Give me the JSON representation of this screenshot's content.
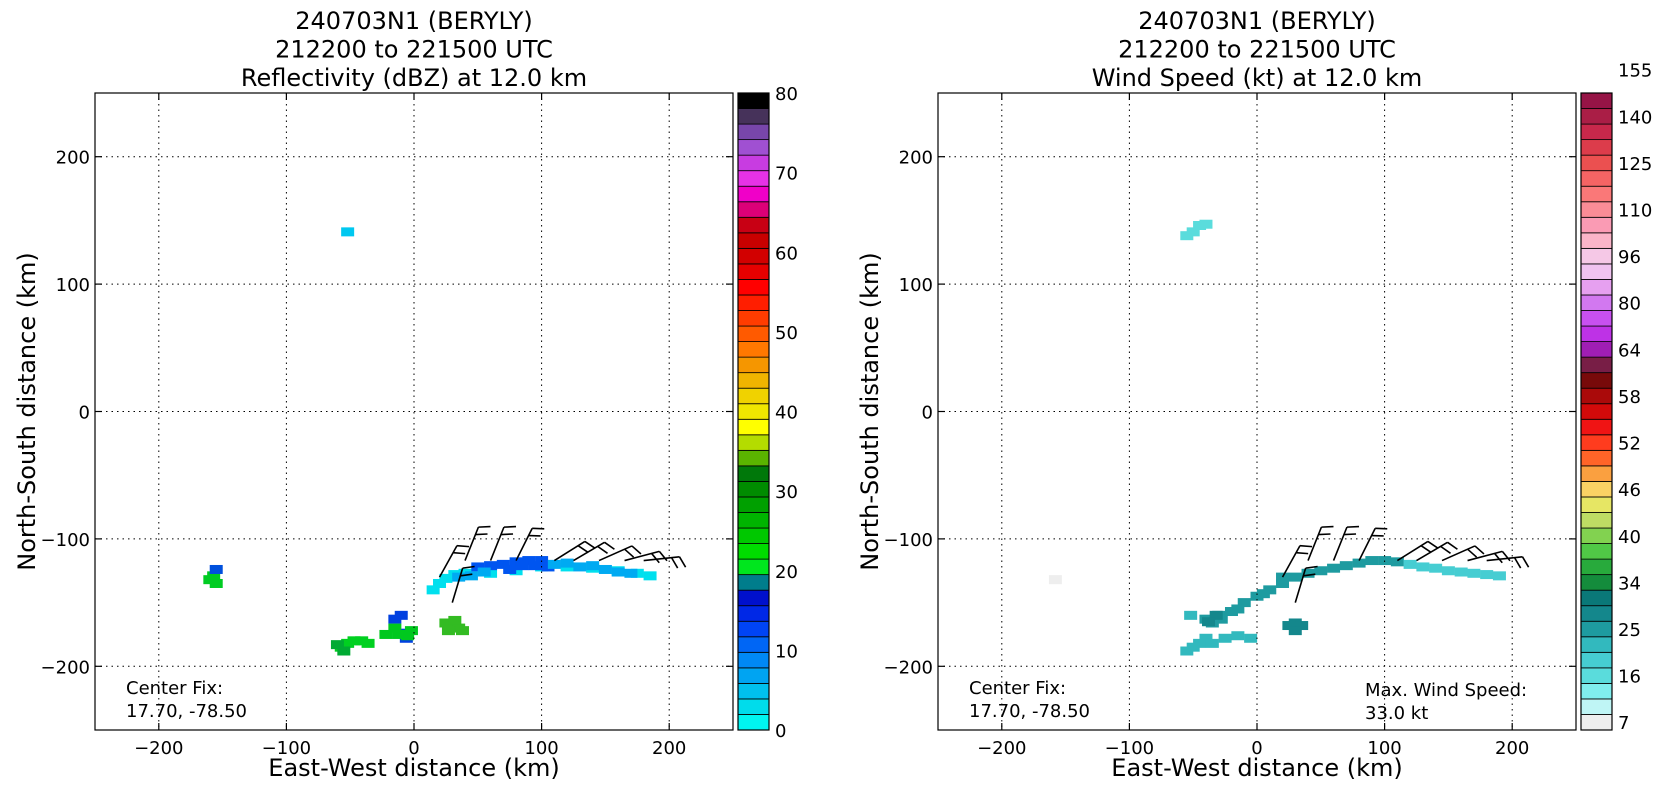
{
  "chart_data": [
    {
      "type": "heatmap",
      "title_lines": [
        "240703N1 (BERYLY)",
        "212200 to 221500 UTC",
        "Reflectivity (dBZ) at 12.0 km"
      ],
      "xlabel": "East-West distance (km)",
      "ylabel": "North-South distance (km)",
      "xlim": [
        -250,
        250
      ],
      "ylim": [
        -250,
        250
      ],
      "xticks": [
        -200,
        -100,
        0,
        100,
        200
      ],
      "yticks": [
        -200,
        -100,
        0,
        100,
        200
      ],
      "grid": true,
      "colorbar": {
        "ticks": [
          "0",
          "10",
          "20",
          "30",
          "40",
          "50",
          "60",
          "70",
          "80"
        ],
        "colors": [
          "#00f5f0",
          "#00dceb",
          "#00c0ee",
          "#00a4f2",
          "#0088f5",
          "#0066f5",
          "#0044f5",
          "#0028e6",
          "#0010cc",
          "#007d8c",
          "#00e61e",
          "#00dc00",
          "#00c800",
          "#00b400",
          "#00a000",
          "#008c00",
          "#00780a",
          "#5ab400",
          "#b4dc00",
          "#ffff00",
          "#f0e600",
          "#f0d200",
          "#f0b400",
          "#f59600",
          "#ff7800",
          "#ff5a00",
          "#ff3c00",
          "#ff1e00",
          "#ff0000",
          "#e60000",
          "#d20000",
          "#c80000",
          "#c80014",
          "#dc0078",
          "#f000c8",
          "#e632e6",
          "#c83ce1",
          "#a050d2",
          "#7846aa",
          "#46325a",
          "#000000"
        ]
      },
      "annotations": [
        "Center Fix:",
        "17.70, -78.50"
      ],
      "features": [
        {
          "color": "#00c8f0",
          "points": [
            [
              -52,
              141
            ]
          ]
        },
        {
          "color": "#00cc22",
          "points": [
            [
              -160,
              -132
            ],
            [
              -155,
              -135
            ],
            [
              -157,
              -129
            ]
          ]
        },
        {
          "color": "#0050dd",
          "points": [
            [
              -155,
              -124
            ]
          ]
        },
        {
          "color": "#00d020",
          "points": [
            [
              -57,
              -185
            ],
            [
              -52,
              -182
            ],
            [
              -47,
              -180
            ],
            [
              -41,
              -180
            ],
            [
              -36,
              -182
            ]
          ]
        },
        {
          "color": "#00aa33",
          "points": [
            [
              -55,
              -188
            ],
            [
              -60,
              -183
            ]
          ]
        },
        {
          "color": "#0040e0",
          "points": [
            [
              -15,
              -163
            ],
            [
              -10,
              -160
            ],
            [
              -7,
              -174
            ],
            [
              -6,
              -178
            ]
          ]
        },
        {
          "color": "#00c81e",
          "points": [
            [
              -15,
              -170
            ],
            [
              -12,
              -175
            ],
            [
              -5,
              -176
            ],
            [
              -2,
              -172
            ],
            [
              -22,
              -175
            ]
          ]
        },
        {
          "color": "#33bb22",
          "points": [
            [
              25,
              -166
            ],
            [
              30,
              -168
            ],
            [
              35,
              -170
            ],
            [
              27,
              -172
            ],
            [
              38,
              -172
            ],
            [
              32,
              -164
            ]
          ]
        },
        {
          "color": "#00e0ee",
          "points": [
            [
              15,
              -140
            ],
            [
              20,
              -135
            ],
            [
              25,
              -131
            ],
            [
              32,
              -128
            ],
            [
              40,
              -127
            ],
            [
              60,
              -127
            ],
            [
              80,
              -125
            ],
            [
              100,
              -122
            ],
            [
              120,
              -122
            ],
            [
              140,
              -123
            ],
            [
              160,
              -125
            ],
            [
              175,
              -127
            ],
            [
              185,
              -129
            ]
          ]
        },
        {
          "color": "#0055f0",
          "points": [
            [
              50,
              -122
            ],
            [
              60,
              -121
            ],
            [
              70,
              -120
            ],
            [
              80,
              -118
            ],
            [
              90,
              -117
            ],
            [
              100,
              -117
            ],
            [
              105,
              -122
            ],
            [
              95,
              -121
            ],
            [
              85,
              -121
            ],
            [
              75,
              -124
            ]
          ]
        },
        {
          "color": "#00aaf2",
          "points": [
            [
              110,
              -120
            ],
            [
              120,
              -119
            ],
            [
              130,
              -122
            ],
            [
              140,
              -121
            ],
            [
              150,
              -124
            ],
            [
              160,
              -126
            ],
            [
              170,
              -127
            ],
            [
              35,
              -130
            ],
            [
              45,
              -129
            ],
            [
              55,
              -126
            ]
          ]
        }
      ],
      "barbs": [
        {
          "x": 20,
          "y": -130,
          "u": 1,
          "v": 1.8
        },
        {
          "x": 40,
          "y": -117,
          "u": 0.8,
          "v": 2
        },
        {
          "x": 60,
          "y": -117,
          "u": 0.8,
          "v": 2
        },
        {
          "x": 80,
          "y": -117,
          "u": 1,
          "v": 2
        },
        {
          "x": 110,
          "y": -117,
          "u": 1.6,
          "v": 1
        },
        {
          "x": 125,
          "y": -117,
          "u": 1.7,
          "v": 1
        },
        {
          "x": 145,
          "y": -117,
          "u": 1.8,
          "v": 0.8
        },
        {
          "x": 165,
          "y": -117,
          "u": 1.9,
          "v": 0.5
        },
        {
          "x": 180,
          "y": -117,
          "u": 1.9,
          "v": 0.2
        },
        {
          "x": 30,
          "y": -150,
          "u": 0.6,
          "v": 2
        }
      ]
    },
    {
      "type": "heatmap",
      "title_lines": [
        "240703N1 (BERYLY)",
        "212200 to 221500 UTC",
        "Wind Speed (kt) at 12.0 km"
      ],
      "xlabel": "East-West distance (km)",
      "ylabel": "North-South distance (km)",
      "xlim": [
        -250,
        250
      ],
      "ylim": [
        -250,
        250
      ],
      "xticks": [
        -200,
        -100,
        0,
        100,
        200
      ],
      "yticks": [
        -200,
        -100,
        0,
        100,
        200
      ],
      "grid": true,
      "colorbar": {
        "ticks": [
          "7",
          "16",
          "25",
          "34",
          "40",
          "46",
          "52",
          "58",
          "64",
          "80",
          "96",
          "110",
          "125",
          "140",
          "155"
        ],
        "colors": [
          "#eeeeee",
          "#bff5f5",
          "#80eeee",
          "#5adcdc",
          "#46cdd2",
          "#32b9be",
          "#1e9ba0",
          "#14878c",
          "#0a7878",
          "#148c3c",
          "#28aa3c",
          "#50c846",
          "#82d250",
          "#bedc64",
          "#e6e664",
          "#fad264",
          "#faa040",
          "#ff6428",
          "#ff3c1e",
          "#f01414",
          "#d20a0a",
          "#aa0a0a",
          "#780a0a",
          "#781e46",
          "#a01eb4",
          "#be32e6",
          "#c850f0",
          "#d278f0",
          "#e6a0f0",
          "#f0c3f0",
          "#f5c8e6",
          "#fab4c8",
          "#fa9bb4",
          "#fa8c96",
          "#fa7878",
          "#f56464",
          "#eb5050",
          "#dc3c4b",
          "#c8284b",
          "#aa1e46",
          "#961446"
        ]
      },
      "annotations": [
        "Center Fix:",
        "17.70, -78.50",
        "Max. Wind Speed:",
        "33.0 kt"
      ],
      "features": [
        {
          "color": "#5adcdc",
          "points": [
            [
              -50,
              141
            ],
            [
              -45,
              146
            ],
            [
              -40,
              147
            ],
            [
              -55,
              138
            ]
          ]
        },
        {
          "color": "#eeeeee",
          "points": [
            [
              -158,
              -132
            ]
          ]
        },
        {
          "color": "#1e9ba0",
          "points": [
            [
              -40,
              -163
            ],
            [
              -30,
              -160
            ],
            [
              -20,
              -157
            ],
            [
              -10,
              -150
            ],
            [
              0,
              -145
            ],
            [
              10,
              -140
            ],
            [
              20,
              -135
            ],
            [
              30,
              -130
            ],
            [
              40,
              -127
            ],
            [
              50,
              -125
            ],
            [
              60,
              -123
            ],
            [
              70,
              -121
            ],
            [
              80,
              -119
            ],
            [
              90,
              -117
            ],
            [
              100,
              -117
            ],
            [
              110,
              -118
            ],
            [
              20,
              -130
            ],
            [
              5,
              -143
            ],
            [
              -15,
              -155
            ],
            [
              -28,
              -163
            ],
            [
              -35,
              -166
            ]
          ]
        },
        {
          "color": "#46cdd2",
          "points": [
            [
              120,
              -120
            ],
            [
              130,
              -122
            ],
            [
              140,
              -123
            ],
            [
              150,
              -125
            ],
            [
              160,
              -126
            ],
            [
              170,
              -127
            ],
            [
              180,
              -128
            ],
            [
              190,
              -129
            ]
          ]
        },
        {
          "color": "#32b9be",
          "points": [
            [
              -50,
              -185
            ],
            [
              -45,
              -182
            ],
            [
              -40,
              -178
            ],
            [
              -35,
              -182
            ],
            [
              -55,
              -188
            ],
            [
              -52,
              -160
            ],
            [
              -25,
              -178
            ],
            [
              -15,
              -176
            ],
            [
              -5,
              -178
            ]
          ]
        },
        {
          "color": "#14878c",
          "points": [
            [
              25,
              -168
            ],
            [
              30,
              -166
            ],
            [
              35,
              -168
            ],
            [
              30,
              -172
            ],
            [
              -32,
              -160
            ],
            [
              -38,
              -165
            ]
          ]
        }
      ],
      "barbs": [
        {
          "x": 20,
          "y": -130,
          "u": 1,
          "v": 1.8
        },
        {
          "x": 40,
          "y": -117,
          "u": 0.8,
          "v": 2
        },
        {
          "x": 60,
          "y": -117,
          "u": 0.8,
          "v": 2
        },
        {
          "x": 80,
          "y": -117,
          "u": 1,
          "v": 2
        },
        {
          "x": 110,
          "y": -117,
          "u": 1.6,
          "v": 1
        },
        {
          "x": 125,
          "y": -117,
          "u": 1.7,
          "v": 1
        },
        {
          "x": 145,
          "y": -117,
          "u": 1.8,
          "v": 0.8
        },
        {
          "x": 165,
          "y": -117,
          "u": 1.9,
          "v": 0.5
        },
        {
          "x": 180,
          "y": -117,
          "u": 1.9,
          "v": 0.2
        },
        {
          "x": 30,
          "y": -150,
          "u": 0.6,
          "v": 2
        }
      ]
    }
  ]
}
